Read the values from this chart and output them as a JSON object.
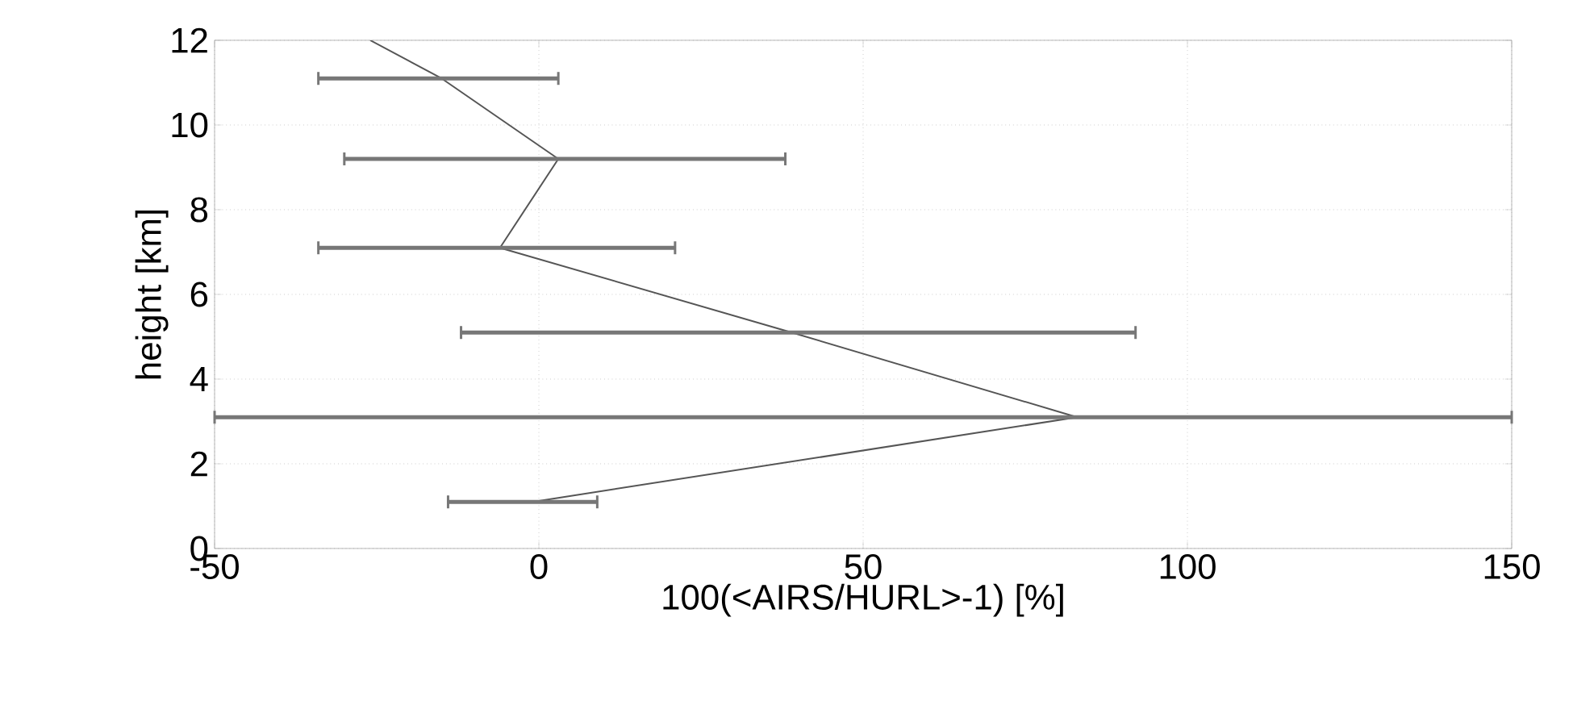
{
  "chart_data": {
    "type": "line",
    "xlabel": "100(<AIRS/HURL>-1) [%]",
    "ylabel": "height [km]",
    "xlim": [
      -50,
      150
    ],
    "xticks": [
      -50,
      0,
      50,
      100,
      150
    ],
    "ylim": [
      0,
      12
    ],
    "yticks": [
      0,
      2,
      4,
      6,
      8,
      10,
      12
    ],
    "grid": true,
    "marker": "none",
    "line_style": "solid",
    "series": [
      {
        "color": "#555555",
        "x": [
          -26,
          -15,
          3,
          -6,
          39,
          83,
          -1
        ],
        "values": [
          12,
          11.1,
          9.2,
          7.1,
          5.1,
          3.1,
          1.1
        ],
        "xerrors": [
          null,
          [
            -34,
            3
          ],
          [
            -30,
            38
          ],
          [
            -34,
            21
          ],
          [
            -12,
            92
          ],
          [
            -50,
            150
          ],
          [
            -14,
            9
          ]
        ]
      }
    ]
  }
}
